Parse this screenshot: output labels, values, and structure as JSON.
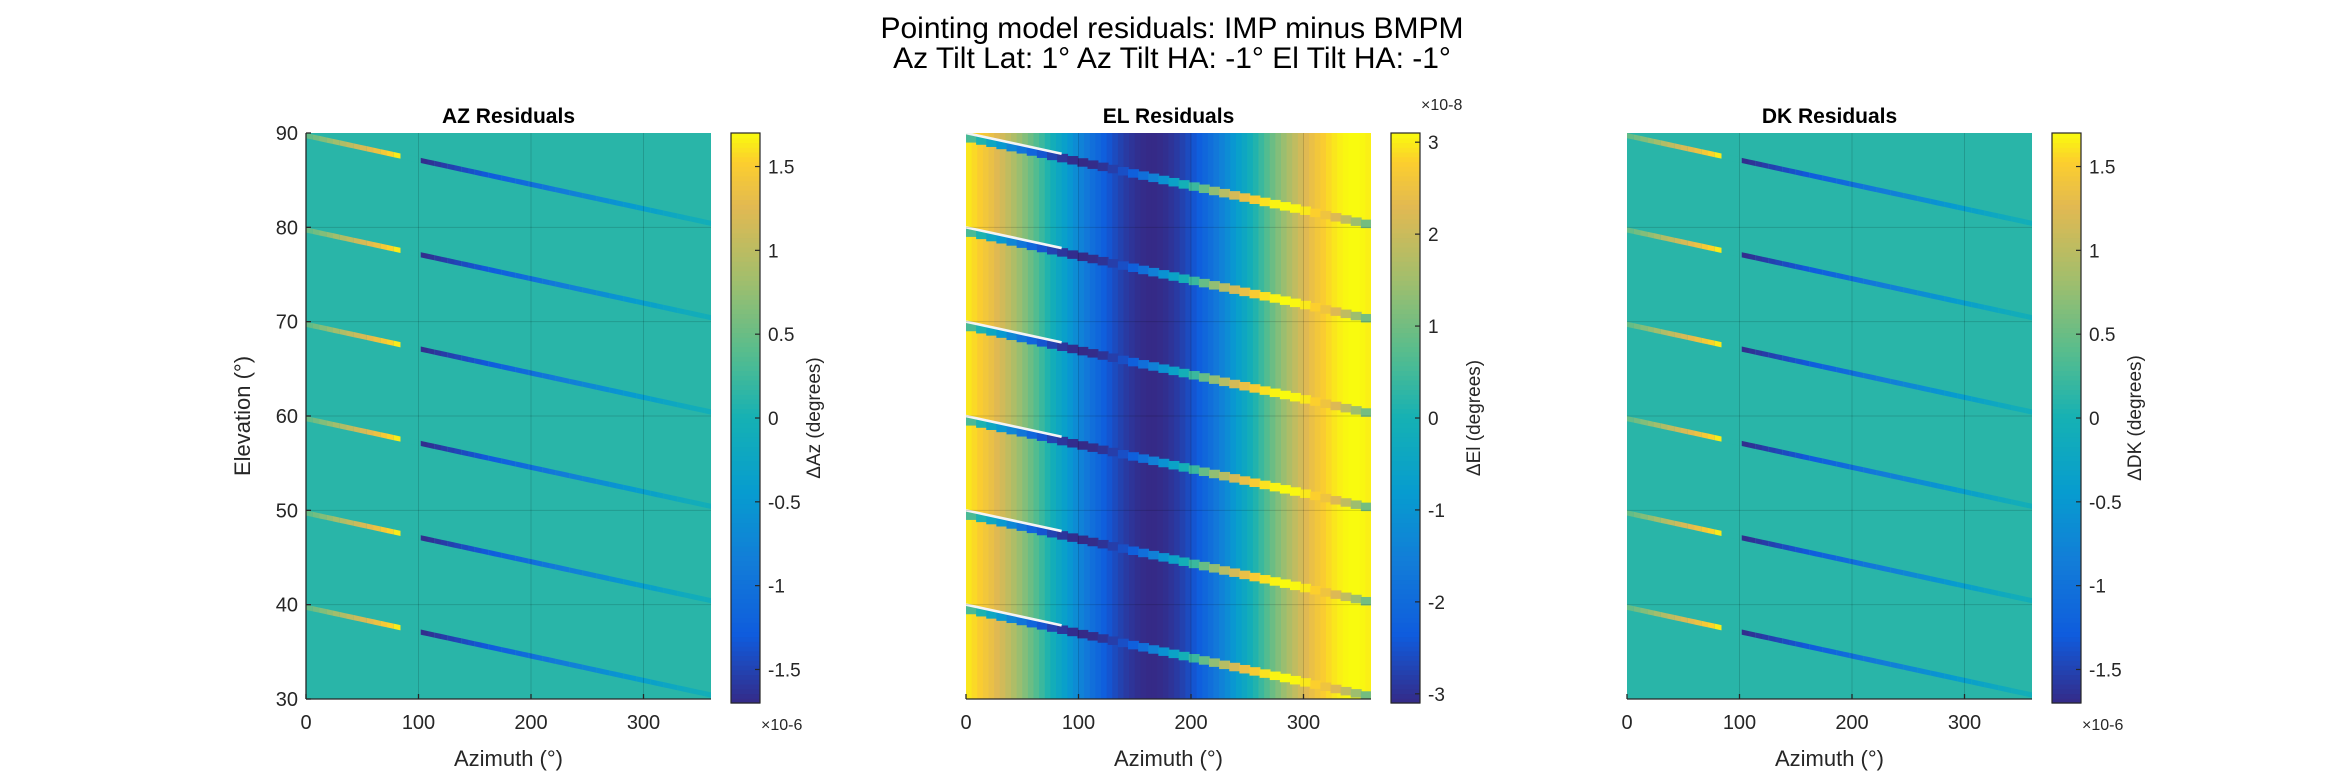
{
  "figure": {
    "title_line1": "Pointing model residuals: IMP minus BMPM",
    "title_line2": "Az Tilt Lat: 1° Az Tilt HA: -1° El Tilt HA: -1°"
  },
  "chart_data": [
    {
      "type": "heatmap",
      "title": "AZ Residuals",
      "xlabel": "Azimuth (°)",
      "ylabel": "Elevation (°)",
      "xlim": [
        0,
        360
      ],
      "ylim": [
        30,
        90
      ],
      "xticks": [
        0,
        100,
        200,
        300
      ],
      "yticks": [
        30,
        40,
        50,
        60,
        70,
        80,
        90
      ],
      "grid": true,
      "colorbar": {
        "label": "ΔAz (degrees)",
        "limits": [
          -1.7,
          1.7
        ],
        "ticks": [
          -1.5,
          -1,
          -0.5,
          0,
          0.5,
          1,
          1.5
        ],
        "tick_labels": [
          "-1.5",
          "-1",
          "-0.5",
          "0",
          "0.5",
          "1",
          "1.5"
        ],
        "exponent": "×10-6",
        "exponent_position": "bottom"
      },
      "pattern": "streaks",
      "streak_elevations": [
        90,
        80,
        70,
        60,
        50,
        40
      ],
      "streak_end_elevation_drop": 9.3,
      "streak_min_value": -1.7,
      "streak_max_value": 1.7,
      "background_value": 0.12
    },
    {
      "type": "heatmap",
      "title": "EL Residuals",
      "xlabel": "Azimuth (°)",
      "ylabel": "",
      "xlim": [
        0,
        360
      ],
      "ylim": [
        30,
        90
      ],
      "xticks": [
        0,
        100,
        200,
        300
      ],
      "yticks": [],
      "grid": true,
      "colorbar": {
        "label": "ΔEl (degrees)",
        "limits": [
          -3.1,
          3.1
        ],
        "ticks": [
          -3,
          -2,
          -1,
          0,
          1,
          2,
          3
        ],
        "tick_labels": [
          "-3",
          "-2",
          "-1",
          "0",
          "1",
          "2",
          "3"
        ],
        "exponent": "×10-8",
        "exponent_position": "top"
      },
      "pattern": "sinusoid",
      "amplitude": 3.1,
      "phase_deg": 165,
      "streak_elevations": [
        90,
        80,
        70,
        60,
        50,
        40
      ],
      "streak_end_elevation_drop": 9.3
    },
    {
      "type": "heatmap",
      "title": "DK Residuals",
      "xlabel": "Azimuth (°)",
      "ylabel": "",
      "xlim": [
        0,
        360
      ],
      "ylim": [
        30,
        90
      ],
      "xticks": [
        0,
        100,
        200,
        300
      ],
      "yticks": [],
      "grid": true,
      "colorbar": {
        "label": "ΔDK (degrees)",
        "limits": [
          -1.7,
          1.7
        ],
        "ticks": [
          -1.5,
          -1,
          -0.5,
          0,
          0.5,
          1,
          1.5
        ],
        "tick_labels": [
          "-1.5",
          "-1",
          "-0.5",
          "0",
          "0.5",
          "1",
          "1.5"
        ],
        "exponent": "×10-6",
        "exponent_position": "bottom"
      },
      "pattern": "streaks",
      "streak_elevations": [
        90,
        80,
        70,
        60,
        50,
        40
      ],
      "streak_end_elevation_drop": 9.3,
      "streak_min_value": -1.7,
      "streak_max_value": 1.7,
      "background_value": 0.12
    }
  ]
}
